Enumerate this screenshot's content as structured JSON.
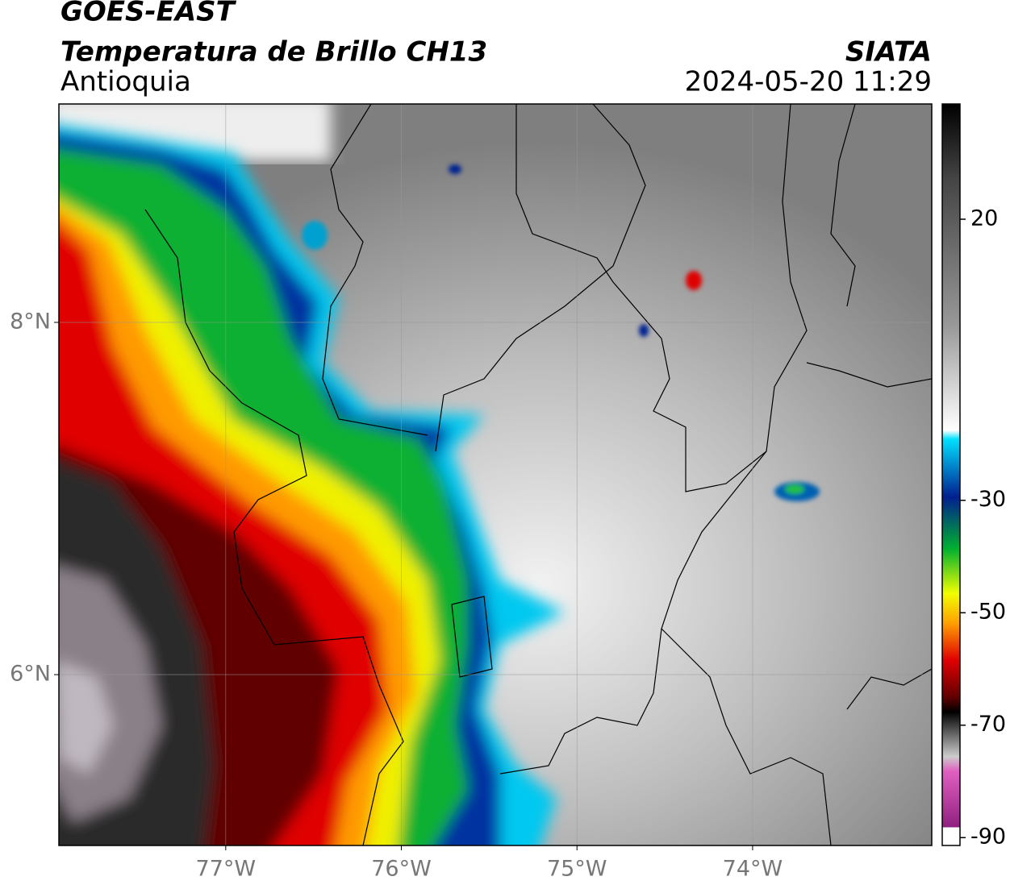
{
  "header": {
    "title": "GOES-EAST",
    "subtitle": "Temperatura de Brillo CH13",
    "region": "Antioquia",
    "source": "SIATA",
    "datetime": "2024-05-20 11:29"
  },
  "map": {
    "lonlim": [
      -77.95,
      -72.98
    ],
    "latlim": [
      5.03,
      9.24
    ],
    "lonticks": [
      {
        "value": -77,
        "label": "77°W"
      },
      {
        "value": -76,
        "label": "76°W"
      },
      {
        "value": -75,
        "label": "75°W"
      },
      {
        "value": -74,
        "label": "74°W"
      }
    ],
    "latticks": [
      {
        "value": 8,
        "label": "8°N"
      },
      {
        "value": 6,
        "label": "6°N"
      }
    ]
  },
  "colorbar": {
    "lim": [
      -91.4,
      40.5
    ],
    "ticks": [
      20,
      -30,
      -50,
      -70,
      -90
    ]
  }
}
